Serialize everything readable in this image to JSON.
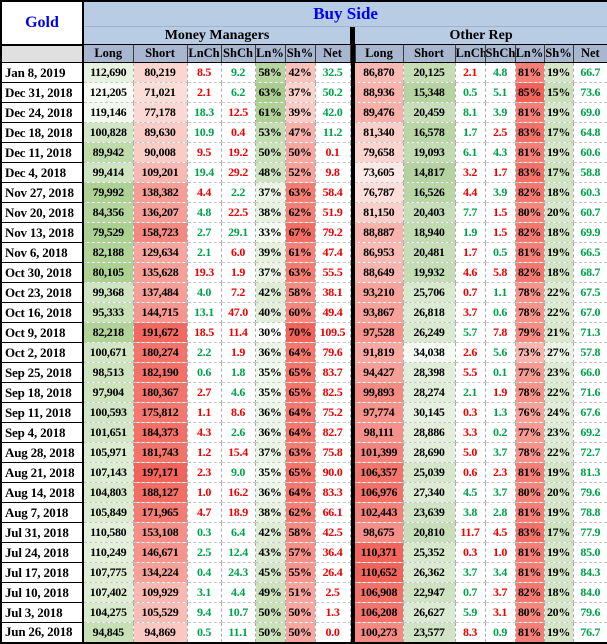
{
  "header": {
    "title": "Gold",
    "banner": "Buy Side",
    "sections": [
      "Money Managers",
      "Other Rep"
    ],
    "columns": [
      "Long",
      "Short",
      "LnCh",
      "ShCh",
      "Ln%",
      "Sh%",
      "Net"
    ]
  },
  "colors": {
    "red_text": "#ee0000",
    "green_text": "#00a14b",
    "blue_title": "#0000e6",
    "banner_bg": "#b8cce4",
    "header_bg": "#a8b6d0",
    "corner_bg": "#e0e0e0",
    "divider": "#000000"
  },
  "heat": {
    "mm": {
      "long": {
        "min": 79529,
        "max": 121205,
        "from": "#abd192",
        "to": "#f7fbf4"
      },
      "short": {
        "min": 71021,
        "max": 197171,
        "from": "#fcded9",
        "to": "#f1645b"
      },
      "lnp": {
        "min": 30,
        "max": 63,
        "from": "#fcfefb",
        "to": "#aace90"
      },
      "shp": {
        "min": 37,
        "max": 70,
        "from": "#fbd3cc",
        "to": "#f1645b"
      }
    },
    "or": {
      "long": {
        "min": 73605,
        "max": 110652,
        "from": "#fdeae6",
        "to": "#f1645b"
      },
      "short": {
        "min": 14817,
        "max": 34038,
        "from": "#b4d3a0",
        "to": "#f4f9f1"
      },
      "lnp": {
        "min": 73,
        "max": 85,
        "from": "#f9b6ae",
        "to": "#f1645b"
      },
      "shp": {
        "min": 15,
        "max": 27,
        "from": "#c9dfb9",
        "to": "#eaf2e3"
      }
    }
  },
  "chart_data": {
    "type": "table",
    "title": "Gold — Buy Side",
    "groups": [
      "Money Managers",
      "Other Rep"
    ],
    "columns": [
      "Long",
      "Short",
      "LnCh",
      "ShCh",
      "Ln%",
      "Sh%",
      "Net"
    ],
    "rows": [
      {
        "date": "Jan 8, 2019",
        "mm": [
          "112,690",
          "80,219",
          "8.5",
          "9.2",
          "58%",
          "42%",
          "32.5"
        ],
        "mm_dirs": [
          "r",
          "g",
          "g"
        ],
        "or": [
          "86,870",
          "20,125",
          "2.1",
          "4.8",
          "81%",
          "19%",
          "66.7"
        ],
        "or_dirs": [
          "r",
          "g",
          "g"
        ]
      },
      {
        "date": "Dec 31, 2018",
        "mm": [
          "121,205",
          "71,021",
          "2.1",
          "6.2",
          "63%",
          "37%",
          "50.2"
        ],
        "mm_dirs": [
          "r",
          "g",
          "g"
        ],
        "or": [
          "88,936",
          "15,348",
          "0.5",
          "5.1",
          "85%",
          "15%",
          "73.6"
        ],
        "or_dirs": [
          "g",
          "g",
          "g"
        ]
      },
      {
        "date": "Dec 24, 2018",
        "mm": [
          "119,146",
          "77,178",
          "18.3",
          "12.5",
          "61%",
          "39%",
          "42.0"
        ],
        "mm_dirs": [
          "g",
          "r",
          "g"
        ],
        "or": [
          "89,476",
          "20,459",
          "8.1",
          "3.9",
          "81%",
          "19%",
          "69.0"
        ],
        "or_dirs": [
          "g",
          "g",
          "g"
        ]
      },
      {
        "date": "Dec 18, 2018",
        "mm": [
          "100,828",
          "89,630",
          "10.9",
          "0.4",
          "53%",
          "47%",
          "11.2"
        ],
        "mm_dirs": [
          "g",
          "r",
          "g"
        ],
        "or": [
          "81,340",
          "16,578",
          "1.7",
          "2.5",
          "83%",
          "17%",
          "64.8"
        ],
        "or_dirs": [
          "g",
          "r",
          "g"
        ]
      },
      {
        "date": "Dec 11, 2018",
        "mm": [
          "89,942",
          "90,008",
          "9.5",
          "19.2",
          "50%",
          "50%",
          "0.1"
        ],
        "mm_dirs": [
          "r",
          "r",
          "r"
        ],
        "or": [
          "79,658",
          "19,093",
          "6.1",
          "4.3",
          "81%",
          "19%",
          "60.6"
        ],
        "or_dirs": [
          "g",
          "g",
          "g"
        ]
      },
      {
        "date": "Dec 4, 2018",
        "mm": [
          "99,414",
          "109,201",
          "19.4",
          "29.2",
          "48%",
          "52%",
          "9.8"
        ],
        "mm_dirs": [
          "g",
          "r",
          "r"
        ],
        "or": [
          "73,605",
          "14,817",
          "3.2",
          "1.7",
          "83%",
          "17%",
          "58.8"
        ],
        "or_dirs": [
          "r",
          "r",
          "g"
        ]
      },
      {
        "date": "Nov 27, 2018",
        "mm": [
          "79,992",
          "138,382",
          "4.4",
          "2.2",
          "37%",
          "63%",
          "58.4"
        ],
        "mm_dirs": [
          "r",
          "g",
          "r"
        ],
        "or": [
          "76,787",
          "16,526",
          "4.4",
          "3.9",
          "82%",
          "18%",
          "60.3"
        ],
        "or_dirs": [
          "r",
          "g",
          "g"
        ]
      },
      {
        "date": "Nov 20, 2018",
        "mm": [
          "84,356",
          "136,207",
          "4.8",
          "22.5",
          "38%",
          "62%",
          "51.9"
        ],
        "mm_dirs": [
          "g",
          "r",
          "r"
        ],
        "or": [
          "81,150",
          "20,403",
          "7.7",
          "1.5",
          "80%",
          "20%",
          "60.7"
        ],
        "or_dirs": [
          "g",
          "r",
          "g"
        ]
      },
      {
        "date": "Nov 13, 2018",
        "mm": [
          "79,529",
          "158,723",
          "2.7",
          "29.1",
          "33%",
          "67%",
          "79.2"
        ],
        "mm_dirs": [
          "g",
          "g",
          "r"
        ],
        "or": [
          "88,887",
          "18,940",
          "1.9",
          "1.5",
          "82%",
          "18%",
          "69.9"
        ],
        "or_dirs": [
          "g",
          "r",
          "g"
        ]
      },
      {
        "date": "Nov 6, 2018",
        "mm": [
          "82,188",
          "129,634",
          "2.1",
          "6.0",
          "39%",
          "61%",
          "47.4"
        ],
        "mm_dirs": [
          "g",
          "r",
          "r"
        ],
        "or": [
          "86,953",
          "20,481",
          "1.7",
          "0.5",
          "81%",
          "19%",
          "66.5"
        ],
        "or_dirs": [
          "r",
          "g",
          "g"
        ]
      },
      {
        "date": "Oct 30, 2018",
        "mm": [
          "80,105",
          "135,628",
          "19.3",
          "1.9",
          "37%",
          "63%",
          "55.5"
        ],
        "mm_dirs": [
          "r",
          "r",
          "r"
        ],
        "or": [
          "88,649",
          "19,932",
          "4.6",
          "5.8",
          "82%",
          "18%",
          "68.7"
        ],
        "or_dirs": [
          "r",
          "r",
          "g"
        ]
      },
      {
        "date": "Oct 23, 2018",
        "mm": [
          "99,368",
          "137,484",
          "4.0",
          "7.2",
          "42%",
          "58%",
          "38.1"
        ],
        "mm_dirs": [
          "g",
          "r",
          "r"
        ],
        "or": [
          "93,210",
          "25,706",
          "0.7",
          "1.1",
          "78%",
          "22%",
          "67.5"
        ],
        "or_dirs": [
          "r",
          "g",
          "g"
        ]
      },
      {
        "date": "Oct 16, 2018",
        "mm": [
          "95,333",
          "144,715",
          "13.1",
          "47.0",
          "40%",
          "60%",
          "49.4"
        ],
        "mm_dirs": [
          "g",
          "r",
          "r"
        ],
        "or": [
          "93,867",
          "26,818",
          "3.7",
          "0.6",
          "78%",
          "22%",
          "67.0"
        ],
        "or_dirs": [
          "r",
          "g",
          "g"
        ]
      },
      {
        "date": "Oct 9, 2018",
        "mm": [
          "82,218",
          "191,672",
          "18.5",
          "11.4",
          "30%",
          "70%",
          "109.5"
        ],
        "mm_dirs": [
          "r",
          "r",
          "r"
        ],
        "or": [
          "97,528",
          "26,249",
          "5.7",
          "7.8",
          "79%",
          "21%",
          "71.3"
        ],
        "or_dirs": [
          "g",
          "r",
          "g"
        ]
      },
      {
        "date": "Oct 2, 2018",
        "mm": [
          "100,671",
          "180,274",
          "2.2",
          "1.9",
          "36%",
          "64%",
          "79.6"
        ],
        "mm_dirs": [
          "g",
          "r",
          "r"
        ],
        "or": [
          "91,819",
          "34,038",
          "2.6",
          "5.6",
          "73%",
          "27%",
          "57.8"
        ],
        "or_dirs": [
          "r",
          "g",
          "g"
        ]
      },
      {
        "date": "Sep 25, 2018",
        "mm": [
          "98,513",
          "182,190",
          "0.6",
          "1.8",
          "35%",
          "65%",
          "83.7"
        ],
        "mm_dirs": [
          "g",
          "g",
          "r"
        ],
        "or": [
          "94,427",
          "28,398",
          "5.5",
          "0.1",
          "77%",
          "23%",
          "66.0"
        ],
        "or_dirs": [
          "r",
          "g",
          "g"
        ]
      },
      {
        "date": "Sep 18, 2018",
        "mm": [
          "97,904",
          "180,367",
          "2.7",
          "4.6",
          "35%",
          "65%",
          "82.5"
        ],
        "mm_dirs": [
          "r",
          "g",
          "r"
        ],
        "or": [
          "99,893",
          "28,274",
          "2.1",
          "1.9",
          "78%",
          "22%",
          "71.6"
        ],
        "or_dirs": [
          "g",
          "r",
          "g"
        ]
      },
      {
        "date": "Sep 11, 2018",
        "mm": [
          "100,593",
          "175,812",
          "1.1",
          "8.6",
          "36%",
          "64%",
          "75.2"
        ],
        "mm_dirs": [
          "r",
          "r",
          "r"
        ],
        "or": [
          "97,774",
          "30,145",
          "0.3",
          "1.3",
          "76%",
          "24%",
          "67.6"
        ],
        "or_dirs": [
          "r",
          "g",
          "g"
        ]
      },
      {
        "date": "Sep 4, 2018",
        "mm": [
          "101,651",
          "184,373",
          "4.3",
          "2.6",
          "36%",
          "64%",
          "82.7"
        ],
        "mm_dirs": [
          "r",
          "g",
          "r"
        ],
        "or": [
          "98,111",
          "28,886",
          "3.3",
          "0.2",
          "77%",
          "23%",
          "69.2"
        ],
        "or_dirs": [
          "r",
          "g",
          "g"
        ]
      },
      {
        "date": "Aug 28, 2018",
        "mm": [
          "105,971",
          "181,743",
          "1.2",
          "15.4",
          "37%",
          "63%",
          "75.8"
        ],
        "mm_dirs": [
          "r",
          "r",
          "r"
        ],
        "or": [
          "101,399",
          "28,690",
          "5.0",
          "3.7",
          "78%",
          "22%",
          "72.7"
        ],
        "or_dirs": [
          "r",
          "g",
          "g"
        ]
      },
      {
        "date": "Aug 21, 2018",
        "mm": [
          "107,143",
          "197,171",
          "2.3",
          "9.0",
          "35%",
          "65%",
          "90.0"
        ],
        "mm_dirs": [
          "r",
          "g",
          "r"
        ],
        "or": [
          "106,357",
          "25,039",
          "0.6",
          "2.3",
          "81%",
          "19%",
          "81.3"
        ],
        "or_dirs": [
          "r",
          "r",
          "g"
        ]
      },
      {
        "date": "Aug 14, 2018",
        "mm": [
          "104,803",
          "188,127",
          "1.0",
          "16.2",
          "36%",
          "64%",
          "83.3"
        ],
        "mm_dirs": [
          "r",
          "r",
          "r"
        ],
        "or": [
          "106,976",
          "27,340",
          "4.5",
          "3.7",
          "80%",
          "20%",
          "79.6"
        ],
        "or_dirs": [
          "g",
          "g",
          "g"
        ]
      },
      {
        "date": "Aug 7, 2018",
        "mm": [
          "105,849",
          "171,965",
          "4.7",
          "18.9",
          "38%",
          "62%",
          "66.1"
        ],
        "mm_dirs": [
          "r",
          "r",
          "r"
        ],
        "or": [
          "102,443",
          "23,639",
          "3.8",
          "2.8",
          "81%",
          "19%",
          "78.8"
        ],
        "or_dirs": [
          "g",
          "g",
          "g"
        ]
      },
      {
        "date": "Jul 31, 2018",
        "mm": [
          "110,580",
          "153,108",
          "0.3",
          "6.4",
          "42%",
          "58%",
          "42.5"
        ],
        "mm_dirs": [
          "g",
          "g",
          "r"
        ],
        "or": [
          "98,675",
          "20,810",
          "11.7",
          "4.5",
          "83%",
          "17%",
          "77.9"
        ],
        "or_dirs": [
          "r",
          "r",
          "g"
        ]
      },
      {
        "date": "Jul 24, 2018",
        "mm": [
          "110,249",
          "146,671",
          "2.5",
          "12.4",
          "43%",
          "57%",
          "36.4"
        ],
        "mm_dirs": [
          "g",
          "g",
          "r"
        ],
        "or": [
          "110,371",
          "25,352",
          "0.3",
          "1.0",
          "81%",
          "19%",
          "85.0"
        ],
        "or_dirs": [
          "r",
          "r",
          "g"
        ]
      },
      {
        "date": "Jul 17, 2018",
        "mm": [
          "107,775",
          "134,224",
          "0.4",
          "24.3",
          "45%",
          "55%",
          "26.4"
        ],
        "mm_dirs": [
          "g",
          "g",
          "r"
        ],
        "or": [
          "110,652",
          "26,362",
          "3.7",
          "3.4",
          "81%",
          "19%",
          "84.3"
        ],
        "or_dirs": [
          "g",
          "g",
          "g"
        ]
      },
      {
        "date": "Jul 10, 2018",
        "mm": [
          "107,402",
          "109,929",
          "3.1",
          "4.4",
          "49%",
          "51%",
          "2.5"
        ],
        "mm_dirs": [
          "g",
          "g",
          "r"
        ],
        "or": [
          "106,908",
          "22,947",
          "0.7",
          "3.7",
          "82%",
          "18%",
          "84.0"
        ],
        "or_dirs": [
          "g",
          "r",
          "g"
        ]
      },
      {
        "date": "Jul 3, 2018",
        "mm": [
          "104,275",
          "105,529",
          "9.4",
          "10.7",
          "50%",
          "50%",
          "1.3"
        ],
        "mm_dirs": [
          "g",
          "g",
          "r"
        ],
        "or": [
          "106,208",
          "26,627",
          "5.9",
          "3.1",
          "80%",
          "20%",
          "79.6"
        ],
        "or_dirs": [
          "g",
          "r",
          "g"
        ]
      },
      {
        "date": "Jun 26, 2018",
        "mm": [
          "94,845",
          "94,869",
          "0.5",
          "11.1",
          "50%",
          "50%",
          "0.0"
        ],
        "mm_dirs": [
          "g",
          "g",
          "r"
        ],
        "or": [
          "100,273",
          "23,577",
          "8.3",
          "0.9",
          "81%",
          "19%",
          "76.7"
        ],
        "or_dirs": [
          "r",
          "g",
          "g"
        ]
      }
    ]
  }
}
